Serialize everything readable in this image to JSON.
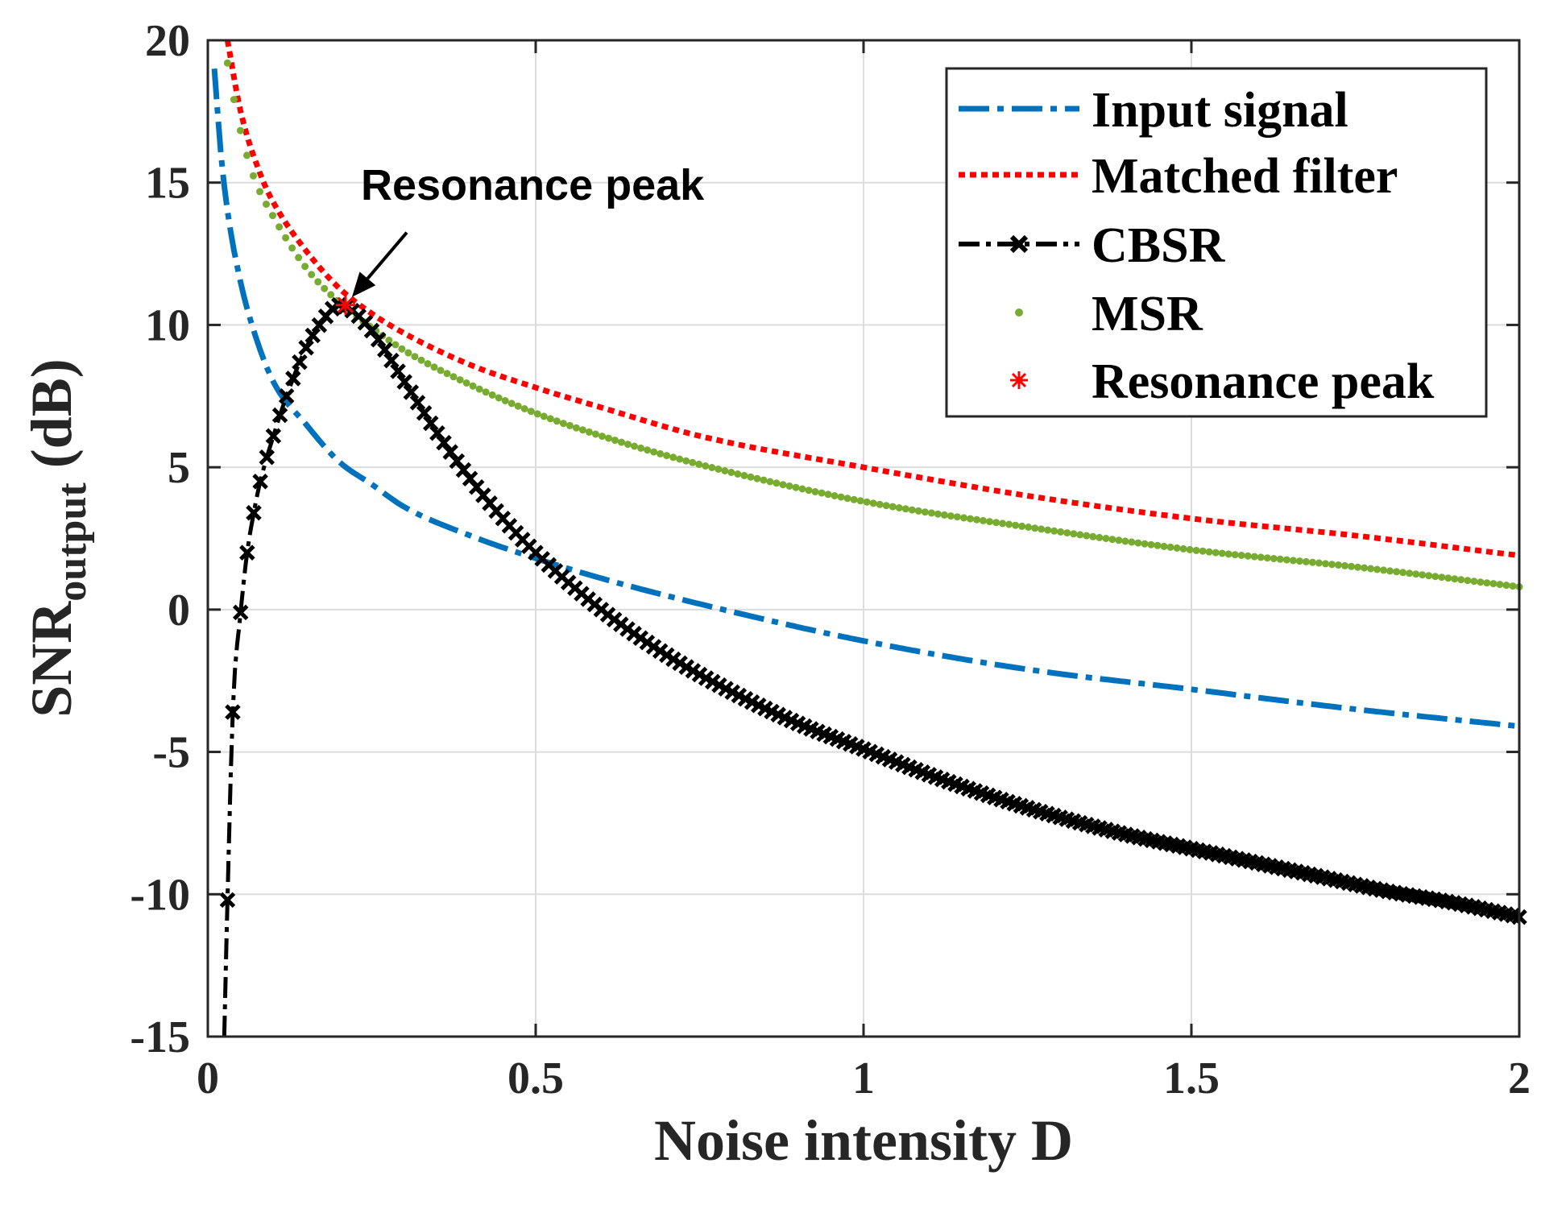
{
  "chart_data": {
    "type": "line",
    "title": "",
    "xlabel": "Noise intensity D",
    "ylabel": {
      "base": "SNR",
      "subscript": "output",
      "suffix": " (dB)"
    },
    "xlim": [
      0,
      2
    ],
    "ylim": [
      -15,
      20
    ],
    "xticks": [
      0,
      0.5,
      1,
      1.5,
      2
    ],
    "xtick_labels": [
      "0",
      "0.5",
      "1",
      "1.5",
      "2"
    ],
    "yticks": [
      -15,
      -10,
      -5,
      0,
      5,
      10,
      15,
      20
    ],
    "ytick_labels": [
      "-15",
      "-10",
      "-5",
      "0",
      "5",
      "10",
      "15",
      "20"
    ],
    "grid": true,
    "legend_position": "top-right",
    "colors": {
      "input": "#0072BD",
      "matched": "#FF0000",
      "cbsr": "#000000",
      "msr": "#77AC30",
      "peak": "#FF0000"
    },
    "series": [
      {
        "key": "input",
        "name": "Input signal",
        "style": "dash-dot",
        "x": [
          0.01,
          0.02,
          0.03,
          0.05,
          0.07,
          0.1,
          0.15,
          0.2,
          0.25,
          0.3,
          0.4,
          0.5,
          0.6,
          0.75,
          1.0,
          1.25,
          1.5,
          1.75,
          2.0
        ],
        "y": [
          19.0,
          16.0,
          14.0,
          11.5,
          9.8,
          8.0,
          6.5,
          5.2,
          4.4,
          3.6,
          2.6,
          1.8,
          1.1,
          0.2,
          -1.1,
          -2.1,
          -2.8,
          -3.5,
          -4.1
        ]
      },
      {
        "key": "matched",
        "name": "Matched filter",
        "style": "dotted",
        "x": [
          0.03,
          0.05,
          0.08,
          0.1,
          0.15,
          0.2,
          0.25,
          0.3,
          0.4,
          0.5,
          0.6,
          0.75,
          1.0,
          1.25,
          1.5,
          1.75,
          2.0
        ],
        "y": [
          20.0,
          17.5,
          15.3,
          14.3,
          12.6,
          11.3,
          10.4,
          9.7,
          8.6,
          7.8,
          7.1,
          6.1,
          5.0,
          4.0,
          3.2,
          2.6,
          1.9
        ]
      },
      {
        "key": "cbsr",
        "name": "CBSR",
        "style": "dash-dot-marker",
        "x": [
          0.025,
          0.03,
          0.038,
          0.05,
          0.06,
          0.07,
          0.08,
          0.1,
          0.12,
          0.15,
          0.18,
          0.2,
          0.22,
          0.25,
          0.3,
          0.35,
          0.4,
          0.45,
          0.5,
          0.6,
          0.7,
          0.8,
          0.9,
          1.0,
          1.1,
          1.2,
          1.3,
          1.4,
          1.5,
          1.6,
          1.7,
          1.8,
          1.9,
          2.0
        ],
        "y": [
          -15.0,
          -10.2,
          -3.6,
          -0.1,
          2.0,
          3.4,
          4.5,
          6.1,
          7.5,
          9.2,
          10.3,
          10.7,
          10.5,
          9.8,
          8.0,
          6.2,
          4.6,
          3.2,
          2.0,
          0.0,
          -1.6,
          -2.9,
          -4.0,
          -4.9,
          -5.8,
          -6.6,
          -7.3,
          -7.9,
          -8.4,
          -8.9,
          -9.4,
          -9.9,
          -10.3,
          -10.8
        ]
      },
      {
        "key": "msr",
        "name": "MSR",
        "style": "dots",
        "x": [
          0.03,
          0.04,
          0.05,
          0.07,
          0.1,
          0.15,
          0.2,
          0.25,
          0.3,
          0.4,
          0.5,
          0.6,
          0.75,
          1.0,
          1.25,
          1.5,
          1.75,
          2.0
        ],
        "y": [
          19.2,
          17.9,
          16.8,
          15.2,
          13.8,
          12.0,
          10.8,
          9.9,
          9.1,
          7.9,
          6.9,
          6.1,
          5.1,
          3.8,
          2.9,
          2.1,
          1.5,
          0.8
        ]
      }
    ],
    "peak": {
      "name": "Resonance peak",
      "x": 0.21,
      "y": 10.7
    },
    "annotation": {
      "text": "Resonance peak",
      "target_x": 0.21,
      "target_y": 10.7
    }
  }
}
